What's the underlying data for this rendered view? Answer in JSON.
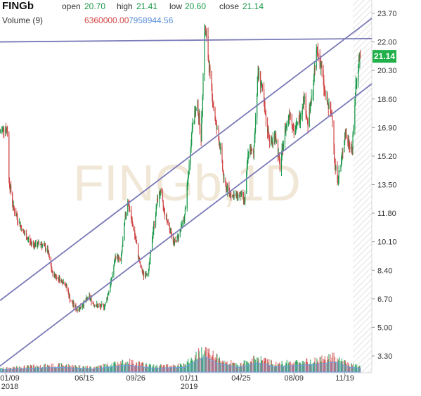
{
  "header": {
    "symbol": "FINGb",
    "open_label": "open",
    "open_value": "20.70",
    "high_label": "high",
    "high_value": "21.41",
    "low_label": "low",
    "low_value": "20.60",
    "close_label": "close",
    "close_value": "21.14",
    "volume_label": "Volume (9)",
    "volume_value_1": "6360000.00",
    "volume_value_2": "7958944.56"
  },
  "watermark": "FINGb,1D",
  "last_price_badge": "21.14",
  "colors": {
    "up": "#1a9a4a",
    "down": "#d04545",
    "trendline": "#7a7ab8",
    "price_badge": "#22b04b",
    "volume_avg": "#6f9fe0",
    "volume_value_1": "#d04545",
    "volume_value_2": "#5b8fd8"
  },
  "chart_data": {
    "type": "candlestick",
    "x_ticks": [
      {
        "label": "01/09",
        "sub": "2018",
        "date": "2018-01-09"
      },
      {
        "label": "06/15",
        "sub": "",
        "date": "2018-06-15"
      },
      {
        "label": "09/26",
        "sub": "",
        "date": "2018-09-26"
      },
      {
        "label": "01/11",
        "sub": "2019",
        "date": "2019-01-11"
      },
      {
        "label": "04/25",
        "sub": "",
        "date": "2019-04-25"
      },
      {
        "label": "08/09",
        "sub": "",
        "date": "2019-08-09"
      },
      {
        "label": "11/19",
        "sub": "",
        "date": "2019-11-19"
      }
    ],
    "y_ticks": [
      "23.70",
      "22.00",
      "20.30",
      "18.60",
      "16.90",
      "15.20",
      "13.50",
      "11.80",
      "10.10",
      "8.40",
      "6.70",
      "5.00",
      "3.30"
    ],
    "ylim": [
      2.5,
      24.5
    ],
    "xlim": [
      "2017-12-28",
      "2020-01-12"
    ],
    "price_path": [
      [
        "2017-12-28",
        16.6
      ],
      [
        "2018-01-04",
        16.9
      ],
      [
        "2018-01-09",
        16.8
      ],
      [
        "2018-01-12",
        16.7
      ],
      [
        "2018-01-15",
        13.8
      ],
      [
        "2018-01-24",
        12.1
      ],
      [
        "2018-02-05",
        11.2
      ],
      [
        "2018-02-14",
        10.6
      ],
      [
        "2018-02-26",
        10.1
      ],
      [
        "2018-03-08",
        9.9
      ],
      [
        "2018-03-20",
        10.0
      ],
      [
        "2018-04-02",
        9.6
      ],
      [
        "2018-04-12",
        8.2
      ],
      [
        "2018-04-25",
        7.9
      ],
      [
        "2018-05-08",
        7.6
      ],
      [
        "2018-05-18",
        6.6
      ],
      [
        "2018-05-30",
        6.1
      ],
      [
        "2018-06-08",
        6.2
      ],
      [
        "2018-06-15",
        6.5
      ],
      [
        "2018-06-25",
        6.8
      ],
      [
        "2018-07-04",
        6.4
      ],
      [
        "2018-07-16",
        6.2
      ],
      [
        "2018-07-26",
        6.3
      ],
      [
        "2018-08-06",
        7.5
      ],
      [
        "2018-08-17",
        9.3
      ],
      [
        "2018-08-27",
        8.9
      ],
      [
        "2018-09-04",
        11.3
      ],
      [
        "2018-09-10",
        12.6
      ],
      [
        "2018-09-18",
        11.3
      ],
      [
        "2018-09-26",
        10.2
      ],
      [
        "2018-10-05",
        8.6
      ],
      [
        "2018-10-12",
        8.1
      ],
      [
        "2018-10-22",
        8.4
      ],
      [
        "2018-10-30",
        10.6
      ],
      [
        "2018-11-08",
        12.5
      ],
      [
        "2018-11-14",
        13.1
      ],
      [
        "2018-11-22",
        11.9
      ],
      [
        "2018-12-03",
        10.9
      ],
      [
        "2018-12-12",
        10.0
      ],
      [
        "2018-12-20",
        10.4
      ],
      [
        "2019-01-02",
        11.6
      ],
      [
        "2019-01-11",
        14.6
      ],
      [
        "2019-01-18",
        17.3
      ],
      [
        "2019-01-28",
        18.2
      ],
      [
        "2019-02-04",
        16.3
      ],
      [
        "2019-02-11",
        22.8
      ],
      [
        "2019-02-15",
        22.1
      ],
      [
        "2019-02-25",
        19.0
      ],
      [
        "2019-03-06",
        17.0
      ],
      [
        "2019-03-14",
        15.8
      ],
      [
        "2019-03-22",
        13.6
      ],
      [
        "2019-04-02",
        13.0
      ],
      [
        "2019-04-12",
        12.8
      ],
      [
        "2019-04-25",
        12.9
      ],
      [
        "2019-05-02",
        12.5
      ],
      [
        "2019-05-10",
        15.6
      ],
      [
        "2019-05-20",
        15.3
      ],
      [
        "2019-05-29",
        20.2
      ],
      [
        "2019-06-05",
        19.4
      ],
      [
        "2019-06-14",
        17.2
      ],
      [
        "2019-06-24",
        15.9
      ],
      [
        "2019-07-03",
        16.5
      ],
      [
        "2019-07-12",
        14.5
      ],
      [
        "2019-07-22",
        16.7
      ],
      [
        "2019-08-01",
        17.9
      ],
      [
        "2019-08-09",
        16.6
      ],
      [
        "2019-08-19",
        17.3
      ],
      [
        "2019-08-29",
        18.7
      ],
      [
        "2019-09-06",
        17.1
      ],
      [
        "2019-09-16",
        19.2
      ],
      [
        "2019-09-24",
        21.6
      ],
      [
        "2019-10-02",
        20.6
      ],
      [
        "2019-10-10",
        18.9
      ],
      [
        "2019-10-18",
        18.0
      ],
      [
        "2019-10-25",
        17.6
      ],
      [
        "2019-10-30",
        14.6
      ],
      [
        "2019-11-05",
        13.9
      ],
      [
        "2019-11-12",
        14.8
      ],
      [
        "2019-11-19",
        16.6
      ],
      [
        "2019-11-26",
        16.0
      ],
      [
        "2019-12-04",
        15.7
      ],
      [
        "2019-12-11",
        19.4
      ],
      [
        "2019-12-18",
        21.1
      ],
      [
        "2019-12-20",
        21.14
      ]
    ],
    "trendlines": [
      {
        "from": [
          "2017-12-28",
          22.0
        ],
        "to": [
          "2020-01-12",
          22.2
        ]
      },
      {
        "from": [
          "2017-12-28",
          6.6
        ],
        "to": [
          "2020-01-12",
          23.4
        ]
      },
      {
        "from": [
          "2017-12-28",
          2.7
        ],
        "to": [
          "2020-01-12",
          19.5
        ]
      }
    ],
    "volume_path": [
      [
        "2018-01-01",
        0.15
      ],
      [
        "2018-03-01",
        0.25
      ],
      [
        "2018-05-01",
        0.3
      ],
      [
        "2018-07-01",
        0.2
      ],
      [
        "2018-09-10",
        0.45
      ],
      [
        "2018-11-01",
        0.25
      ],
      [
        "2019-01-01",
        0.3
      ],
      [
        "2019-01-28",
        0.75
      ],
      [
        "2019-02-12",
        1.0
      ],
      [
        "2019-03-10",
        0.55
      ],
      [
        "2019-04-20",
        0.3
      ],
      [
        "2019-05-29",
        0.6
      ],
      [
        "2019-07-01",
        0.35
      ],
      [
        "2019-09-24",
        0.5
      ],
      [
        "2019-10-30",
        0.65
      ],
      [
        "2019-11-30",
        0.3
      ],
      [
        "2019-12-20",
        0.25
      ]
    ]
  }
}
